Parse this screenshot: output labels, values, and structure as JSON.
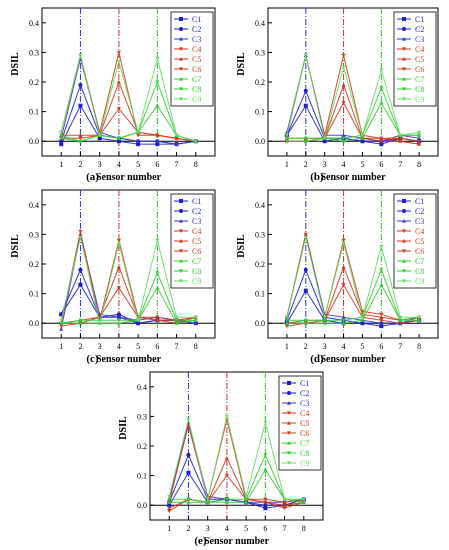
{
  "chart_data": [
    {
      "type": "line",
      "label": "(a)",
      "xlabel": "Sensor number",
      "ylabel": "DSIL",
      "x": [
        1,
        2,
        3,
        4,
        5,
        6,
        7,
        8
      ],
      "xlim": [
        0,
        9
      ],
      "ylim": [
        -0.05,
        0.45
      ],
      "yticks": [
        0.0,
        0.1,
        0.2,
        0.3,
        0.4
      ],
      "grid": false,
      "legend": "top-right",
      "reference_lines": [
        {
          "x": 2,
          "color": "#3333cc"
        },
        {
          "x": 4,
          "color": "#cc3333"
        },
        {
          "x": 6,
          "color": "#33bb33"
        }
      ],
      "series": [
        {
          "name": "C1",
          "color": "#1f1fcc",
          "values": [
            -0.01,
            0.12,
            0.01,
            0.0,
            -0.01,
            -0.01,
            -0.01,
            0.0
          ]
        },
        {
          "name": "C2",
          "color": "#1f1fcc",
          "values": [
            0.0,
            0.19,
            0.02,
            0.01,
            0.0,
            0.0,
            -0.01,
            0.0
          ]
        },
        {
          "name": "C3",
          "color": "#3a3acc",
          "values": [
            0.01,
            0.28,
            0.03,
            0.01,
            0.0,
            0.0,
            -0.01,
            0.0
          ]
        },
        {
          "name": "C4",
          "color": "#cc3a1f",
          "values": [
            0.01,
            0.01,
            0.02,
            0.11,
            0.03,
            0.02,
            0.01,
            0.0
          ]
        },
        {
          "name": "C5",
          "color": "#cc3a1f",
          "values": [
            0.02,
            0.02,
            0.02,
            0.2,
            0.03,
            0.02,
            0.01,
            0.0
          ]
        },
        {
          "name": "C6",
          "color": "#cc3a1f",
          "values": [
            0.03,
            0.29,
            0.03,
            0.3,
            0.02,
            0.02,
            0.01,
            0.0
          ]
        },
        {
          "name": "C7",
          "color": "#33cc33",
          "values": [
            0.01,
            0.0,
            0.02,
            0.01,
            0.03,
            0.12,
            0.02,
            0.0
          ]
        },
        {
          "name": "C8",
          "color": "#33cc33",
          "values": [
            0.02,
            0.0,
            0.02,
            0.01,
            0.03,
            0.2,
            0.02,
            0.0
          ]
        },
        {
          "name": "C9",
          "color": "#66dd66",
          "values": [
            0.03,
            0.29,
            0.02,
            0.27,
            0.03,
            0.28,
            0.02,
            0.0
          ]
        }
      ]
    },
    {
      "type": "line",
      "label": "(b)",
      "xlabel": "Sensor number",
      "ylabel": "DSIL",
      "x": [
        1,
        2,
        3,
        4,
        5,
        6,
        7,
        8
      ],
      "xlim": [
        0,
        9
      ],
      "ylim": [
        -0.05,
        0.45
      ],
      "yticks": [
        0.0,
        0.1,
        0.2,
        0.3,
        0.4
      ],
      "grid": false,
      "legend": "top-right",
      "reference_lines": [
        {
          "x": 2,
          "color": "#3333cc"
        },
        {
          "x": 4,
          "color": "#cc3333"
        },
        {
          "x": 6,
          "color": "#33bb33"
        }
      ],
      "series": [
        {
          "name": "C1",
          "color": "#1f1fcc",
          "values": [
            0.02,
            0.12,
            0.0,
            0.01,
            0.0,
            -0.01,
            0.01,
            0.0
          ]
        },
        {
          "name": "C2",
          "color": "#1f1fcc",
          "values": [
            0.02,
            0.17,
            0.01,
            0.01,
            0.0,
            0.0,
            0.01,
            0.0
          ]
        },
        {
          "name": "C3",
          "color": "#3a3acc",
          "values": [
            0.03,
            0.29,
            0.02,
            0.02,
            0.01,
            0.0,
            0.02,
            0.01
          ]
        },
        {
          "name": "C4",
          "color": "#cc3a1f",
          "values": [
            0.0,
            0.0,
            0.01,
            0.13,
            0.01,
            0.0,
            0.0,
            -0.01
          ]
        },
        {
          "name": "C5",
          "color": "#cc3a1f",
          "values": [
            0.01,
            0.01,
            0.01,
            0.19,
            0.01,
            0.01,
            0.0,
            -0.01
          ]
        },
        {
          "name": "C6",
          "color": "#cc3a1f",
          "values": [
            0.02,
            0.29,
            0.02,
            0.29,
            0.02,
            0.01,
            0.01,
            0.0
          ]
        },
        {
          "name": "C7",
          "color": "#33cc33",
          "values": [
            0.0,
            0.0,
            0.01,
            0.0,
            0.01,
            0.13,
            0.02,
            0.02
          ]
        },
        {
          "name": "C8",
          "color": "#33cc33",
          "values": [
            0.01,
            0.01,
            0.01,
            0.01,
            0.02,
            0.18,
            0.02,
            0.02
          ]
        },
        {
          "name": "C9",
          "color": "#66dd66",
          "values": [
            0.02,
            0.29,
            0.01,
            0.25,
            0.02,
            0.24,
            0.02,
            0.03
          ]
        }
      ]
    },
    {
      "type": "line",
      "label": "(c)",
      "xlabel": "Sensor number",
      "ylabel": "DSIL",
      "x": [
        1,
        2,
        3,
        4,
        5,
        6,
        7,
        8
      ],
      "xlim": [
        0,
        9
      ],
      "ylim": [
        -0.05,
        0.45
      ],
      "yticks": [
        0.0,
        0.1,
        0.2,
        0.3,
        0.4
      ],
      "grid": false,
      "legend": "top-right",
      "reference_lines": [
        {
          "x": 2,
          "color": "#3333cc"
        },
        {
          "x": 4,
          "color": "#cc3333"
        },
        {
          "x": 6,
          "color": "#33bb33"
        }
      ],
      "series": [
        {
          "name": "C1",
          "color": "#1f1fcc",
          "values": [
            0.03,
            0.13,
            0.02,
            0.02,
            0.0,
            0.01,
            0.01,
            0.0
          ]
        },
        {
          "name": "C2",
          "color": "#1f1fcc",
          "values": [
            0.03,
            0.18,
            0.02,
            0.03,
            0.0,
            0.01,
            0.01,
            0.0
          ]
        },
        {
          "name": "C3",
          "color": "#3a3acc",
          "values": [
            -0.02,
            0.3,
            0.03,
            0.02,
            0.01,
            0.02,
            0.01,
            0.0
          ]
        },
        {
          "name": "C4",
          "color": "#cc3a1f",
          "values": [
            -0.01,
            0.0,
            0.02,
            0.12,
            0.02,
            0.01,
            0.0,
            0.02
          ]
        },
        {
          "name": "C5",
          "color": "#cc3a1f",
          "values": [
            0.0,
            0.01,
            0.02,
            0.19,
            0.02,
            0.01,
            0.01,
            0.02
          ]
        },
        {
          "name": "C6",
          "color": "#cc3a1f",
          "values": [
            0.0,
            0.31,
            0.01,
            0.28,
            0.02,
            0.02,
            0.01,
            0.02
          ]
        },
        {
          "name": "C7",
          "color": "#33cc33",
          "values": [
            0.0,
            0.0,
            0.0,
            0.0,
            0.01,
            0.12,
            0.0,
            0.01
          ]
        },
        {
          "name": "C8",
          "color": "#33cc33",
          "values": [
            0.0,
            0.01,
            0.01,
            0.01,
            0.01,
            0.17,
            0.01,
            0.01
          ]
        },
        {
          "name": "C9",
          "color": "#66dd66",
          "values": [
            0.01,
            0.29,
            0.0,
            0.27,
            0.01,
            0.28,
            0.02,
            0.02
          ]
        }
      ]
    },
    {
      "type": "line",
      "label": "(d)",
      "xlabel": "Sensor number",
      "ylabel": "DSIL",
      "x": [
        1,
        2,
        3,
        4,
        5,
        6,
        7,
        8
      ],
      "xlim": [
        0,
        9
      ],
      "ylim": [
        -0.05,
        0.45
      ],
      "yticks": [
        0.0,
        0.1,
        0.2,
        0.3,
        0.4
      ],
      "grid": false,
      "legend": "top-right",
      "reference_lines": [
        {
          "x": 2,
          "color": "#3333cc"
        },
        {
          "x": 4,
          "color": "#cc3333"
        },
        {
          "x": 6,
          "color": "#33bb33"
        }
      ],
      "series": [
        {
          "name": "C1",
          "color": "#1f1fcc",
          "values": [
            0.0,
            0.11,
            0.01,
            0.0,
            0.0,
            -0.01,
            0.0,
            0.01
          ]
        },
        {
          "name": "C2",
          "color": "#1f1fcc",
          "values": [
            0.01,
            0.18,
            0.02,
            0.01,
            0.0,
            0.0,
            0.0,
            0.01
          ]
        },
        {
          "name": "C3",
          "color": "#3a3acc",
          "values": [
            0.02,
            0.3,
            0.03,
            0.02,
            0.01,
            0.0,
            0.0,
            0.02
          ]
        },
        {
          "name": "C4",
          "color": "#cc3a1f",
          "values": [
            -0.01,
            0.0,
            0.01,
            0.13,
            0.02,
            0.01,
            0.0,
            0.01
          ]
        },
        {
          "name": "C5",
          "color": "#cc3a1f",
          "values": [
            0.0,
            0.01,
            0.01,
            0.19,
            0.03,
            0.02,
            0.01,
            0.02
          ]
        },
        {
          "name": "C6",
          "color": "#cc3a1f",
          "values": [
            0.02,
            0.3,
            0.02,
            0.28,
            0.04,
            0.03,
            0.01,
            0.02
          ]
        },
        {
          "name": "C7",
          "color": "#33cc33",
          "values": [
            0.0,
            0.0,
            0.0,
            0.0,
            0.01,
            0.13,
            0.01,
            0.01
          ]
        },
        {
          "name": "C8",
          "color": "#33cc33",
          "values": [
            0.01,
            0.01,
            0.01,
            0.01,
            0.02,
            0.18,
            0.01,
            0.02
          ]
        },
        {
          "name": "C9",
          "color": "#66dd66",
          "values": [
            0.02,
            0.29,
            0.02,
            0.27,
            0.02,
            0.26,
            0.02,
            0.02
          ]
        }
      ]
    },
    {
      "type": "line",
      "label": "(e)",
      "xlabel": "Sensor number",
      "ylabel": "DSIL",
      "x": [
        1,
        2,
        3,
        4,
        5,
        6,
        7,
        8
      ],
      "xlim": [
        0,
        9
      ],
      "ylim": [
        -0.05,
        0.45
      ],
      "yticks": [
        0.0,
        0.1,
        0.2,
        0.3,
        0.4
      ],
      "grid": false,
      "legend": "top-right",
      "reference_lines": [
        {
          "x": 2,
          "color": "#3333cc"
        },
        {
          "x": 4,
          "color": "#cc3333"
        },
        {
          "x": 6,
          "color": "#33bb33"
        }
      ],
      "series": [
        {
          "name": "C1",
          "color": "#1f1fcc",
          "values": [
            0.0,
            0.11,
            0.01,
            0.02,
            0.01,
            -0.01,
            0.0,
            0.02
          ]
        },
        {
          "name": "C2",
          "color": "#1f1fcc",
          "values": [
            0.01,
            0.17,
            0.02,
            0.02,
            0.01,
            0.0,
            0.0,
            0.02
          ]
        },
        {
          "name": "C3",
          "color": "#3a3acc",
          "values": [
            0.02,
            0.28,
            0.03,
            0.02,
            0.01,
            0.01,
            0.01,
            0.02
          ]
        },
        {
          "name": "C4",
          "color": "#cc3a1f",
          "values": [
            -0.02,
            0.02,
            0.01,
            0.1,
            0.02,
            0.01,
            -0.01,
            0.01
          ]
        },
        {
          "name": "C5",
          "color": "#cc3a1f",
          "values": [
            -0.01,
            0.02,
            0.01,
            0.16,
            0.02,
            0.01,
            0.0,
            0.01
          ]
        },
        {
          "name": "C6",
          "color": "#cc3a1f",
          "values": [
            0.01,
            0.27,
            0.02,
            0.29,
            0.02,
            0.02,
            0.01,
            0.02
          ]
        },
        {
          "name": "C7",
          "color": "#33cc33",
          "values": [
            0.01,
            0.01,
            0.01,
            0.01,
            0.01,
            0.12,
            0.02,
            0.01
          ]
        },
        {
          "name": "C8",
          "color": "#33cc33",
          "values": [
            0.02,
            0.02,
            0.01,
            0.02,
            0.02,
            0.17,
            0.02,
            0.02
          ]
        },
        {
          "name": "C9",
          "color": "#66dd66",
          "values": [
            0.03,
            0.29,
            0.02,
            0.3,
            0.03,
            0.28,
            0.02,
            0.02
          ]
        }
      ]
    }
  ]
}
